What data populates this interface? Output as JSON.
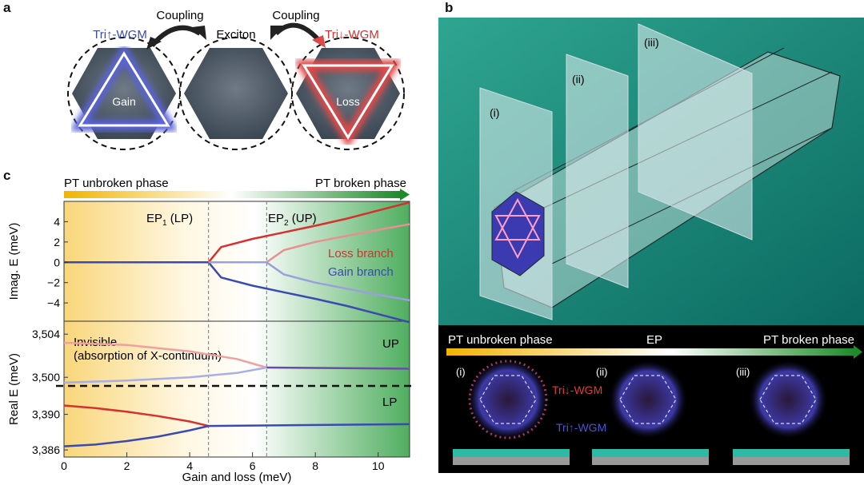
{
  "panel_a": {
    "letter": "a",
    "coupling_left": "Coupling",
    "coupling_right": "Coupling",
    "label_tri_up": "Tri↑-WGM",
    "label_exciton": "Exciton",
    "label_tri_down": "Tri↓-WGM",
    "label_gain": "Gain",
    "label_loss": "Loss"
  },
  "panel_b": {
    "letter": "b",
    "plane_labels": [
      "(i)",
      "(ii)",
      "(iii)"
    ],
    "bar_left": "PT unbroken phase",
    "bar_mid": "EP",
    "bar_right": "PT broken phase",
    "inset_labels": [
      "(i)",
      "(ii)",
      "(iii)"
    ],
    "tri_down_label": "Tri↓-WGM",
    "tri_up_label": "Tri↑-WGM"
  },
  "panel_c": {
    "letter": "c",
    "phase_left": "PT unbroken phase",
    "phase_right": "PT broken phase",
    "ep1_label": "EP",
    "ep1_sub": "1",
    "ep1_tail": " (LP)",
    "ep2_label": "EP",
    "ep2_sub": "2",
    "ep2_tail": " (UP)",
    "loss_branch": "Loss branch",
    "gain_branch": "Gain branch",
    "invisible_line1": "Invisible",
    "invisible_line2": "(absorption of X-continuum)",
    "up_label": "UP",
    "lp_label": "LP"
  },
  "chart_data": {
    "type": "line",
    "xlabel": "Gain and loss (meV)",
    "x_ticks": [
      "0",
      "2",
      "4",
      "6",
      "8",
      "10"
    ],
    "xlim": [
      0,
      11
    ],
    "ep1_x": 4.6,
    "ep2_x": 6.45,
    "imag": {
      "ylabel": "Imag. E (meV)",
      "y_ticks": [
        "4",
        "2",
        "0",
        "−2",
        "−4"
      ],
      "ylim": [
        -5.8,
        6
      ],
      "series": [
        {
          "name": "Loss branch",
          "x": [
            0,
            4.6,
            5,
            6,
            7,
            8,
            9,
            10,
            11
          ],
          "y": [
            0,
            0,
            1.5,
            2.3,
            2.95,
            3.6,
            4.3,
            5.1,
            5.9
          ]
        },
        {
          "name": "Gain branch",
          "x": [
            0,
            4.6,
            5,
            6,
            7,
            8,
            9,
            10,
            11
          ],
          "y": [
            0,
            0,
            -1.5,
            -2.3,
            -2.95,
            -3.6,
            -4.3,
            -5.1,
            -5.9
          ]
        },
        {
          "x": [
            4.6,
            6.45,
            7,
            8,
            9,
            10,
            11
          ],
          "y": [
            0,
            0,
            1.2,
            2.0,
            2.6,
            3.2,
            3.75
          ]
        },
        {
          "x": [
            4.6,
            6.45,
            7,
            8,
            9,
            10,
            11
          ],
          "y": [
            0,
            0,
            -1.2,
            -2.0,
            -2.6,
            -3.2,
            -3.75
          ]
        }
      ]
    },
    "real_up": {
      "y_ticks": [
        "3,504",
        "3,500"
      ],
      "ylim": [
        3499.2,
        3505.2
      ],
      "series": [
        {
          "x": [
            0,
            2,
            4,
            5.5,
            6.45
          ],
          "y": [
            3503.2,
            3503.0,
            3502.4,
            3501.7,
            3500.9
          ]
        },
        {
          "x": [
            0,
            2,
            4,
            5.5,
            6.45
          ],
          "y": [
            3499.5,
            3499.7,
            3500.0,
            3500.4,
            3500.9
          ]
        },
        {
          "x": [
            6.45,
            11
          ],
          "y": [
            3500.9,
            3500.8
          ]
        }
      ]
    },
    "real_lp": {
      "ylabel": "Real E (meV)",
      "y_ticks": [
        "3,390",
        "3,386"
      ],
      "ylim": [
        3385.2,
        3393.2
      ],
      "series": [
        {
          "x": [
            0,
            1,
            2,
            3,
            4,
            4.6
          ],
          "y": [
            3391.0,
            3390.7,
            3390.3,
            3389.8,
            3389.2,
            3388.7
          ]
        },
        {
          "x": [
            0,
            1,
            2,
            3,
            4,
            4.6
          ],
          "y": [
            3386.4,
            3386.6,
            3387.0,
            3387.5,
            3388.2,
            3388.7
          ]
        },
        {
          "x": [
            4.6,
            11
          ],
          "y": [
            3388.7,
            3388.9
          ]
        }
      ]
    },
    "ylabel_imag": "Imag. E (meV)",
    "ylabel_real": "Real E (meV)"
  }
}
